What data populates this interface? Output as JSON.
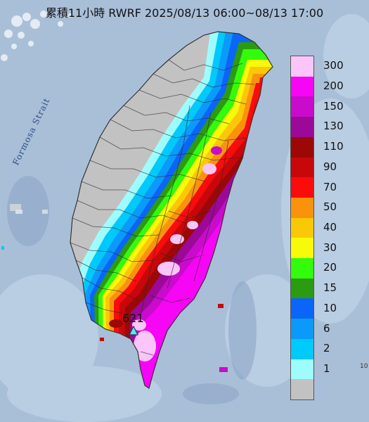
{
  "title": "累積11小時 RWRF 2025/08/13 06:00~08/13 17:00",
  "map": {
    "water_label": "Formosa Strait",
    "max_value_label": "621"
  },
  "legend": {
    "unit": "",
    "items": [
      {
        "label": "300",
        "color": "#fbc5f9"
      },
      {
        "label": "200",
        "color": "#f705f5"
      },
      {
        "label": "150",
        "color": "#c90bcc"
      },
      {
        "label": "130",
        "color": "#9c0897"
      },
      {
        "label": "110",
        "color": "#9b0806"
      },
      {
        "label": "90",
        "color": "#c8070b"
      },
      {
        "label": "70",
        "color": "#f90c0a"
      },
      {
        "label": "50",
        "color": "#f9930b"
      },
      {
        "label": "40",
        "color": "#fbc807"
      },
      {
        "label": "30",
        "color": "#f7fa09"
      },
      {
        "label": "20",
        "color": "#33fb0c"
      },
      {
        "label": "15",
        "color": "#2c9b11"
      },
      {
        "label": "10",
        "color": "#0b65f9"
      },
      {
        "label": "6",
        "color": "#0b9afa"
      },
      {
        "label": "2",
        "color": "#00c9fb"
      },
      {
        "label": "1",
        "color": "#9ffcfd"
      },
      {
        "label": "",
        "color": "#c2c2c2"
      }
    ]
  },
  "edge_text": "10"
}
